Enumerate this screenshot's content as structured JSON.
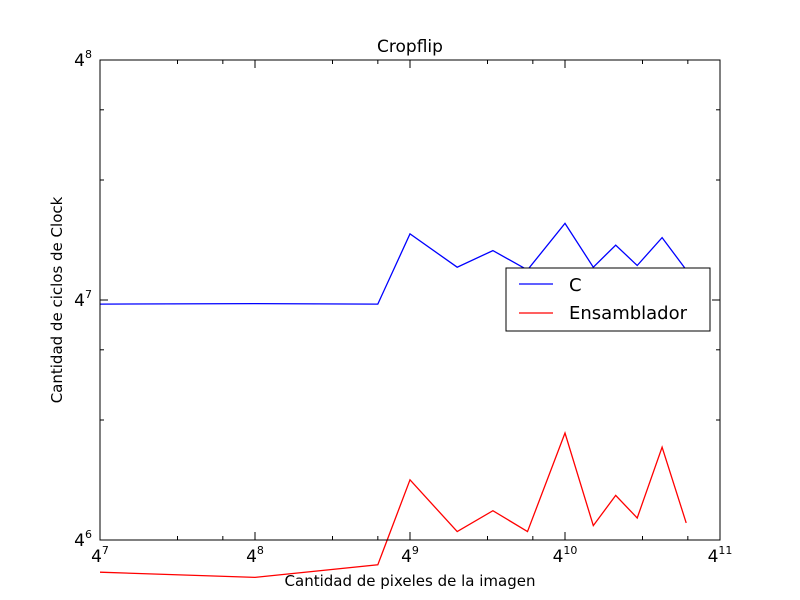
{
  "chart_data": {
    "type": "line",
    "title": "Cropflip",
    "xlabel": "Cantidad de pixeles de la imagen",
    "ylabel": "Cantidad de ciclos de Clock",
    "xscale": "log4",
    "yscale": "log4",
    "xlim_exp": [
      7,
      11
    ],
    "ylim_exp": [
      6,
      8
    ],
    "x_ticks": [
      {
        "base": "4",
        "exp": "7"
      },
      {
        "base": "4",
        "exp": "8"
      },
      {
        "base": "4",
        "exp": "9"
      },
      {
        "base": "4",
        "exp": "10"
      },
      {
        "base": "4",
        "exp": "11"
      }
    ],
    "y_ticks": [
      {
        "base": "4",
        "exp": "6"
      },
      {
        "base": "4",
        "exp": "7"
      },
      {
        "base": "4",
        "exp": "8"
      }
    ],
    "grid": false,
    "legend_position": "center-right",
    "series": [
      {
        "name": "C",
        "color": "#0000ff",
        "x": [
          16384,
          65536,
          196608,
          262144,
          400000,
          550000,
          750000,
          1048576,
          1350000,
          1650000,
          2000000,
          2500000,
          3100000
        ],
        "y": [
          16000,
          16050,
          16000,
          24000,
          19800,
          21800,
          19500,
          25500,
          19800,
          22500,
          20000,
          23500,
          19500
        ]
      },
      {
        "name": "Ensamblador",
        "color": "#ff0000",
        "x": [
          16384,
          65536,
          196608,
          262144,
          400000,
          550000,
          750000,
          1048576,
          1350000,
          1650000,
          2000000,
          2500000,
          3100000
        ],
        "y": [
          3400,
          3300,
          3550,
          5800,
          4300,
          4850,
          4300,
          7600,
          4450,
          5300,
          4650,
          7000,
          4520
        ]
      }
    ]
  }
}
